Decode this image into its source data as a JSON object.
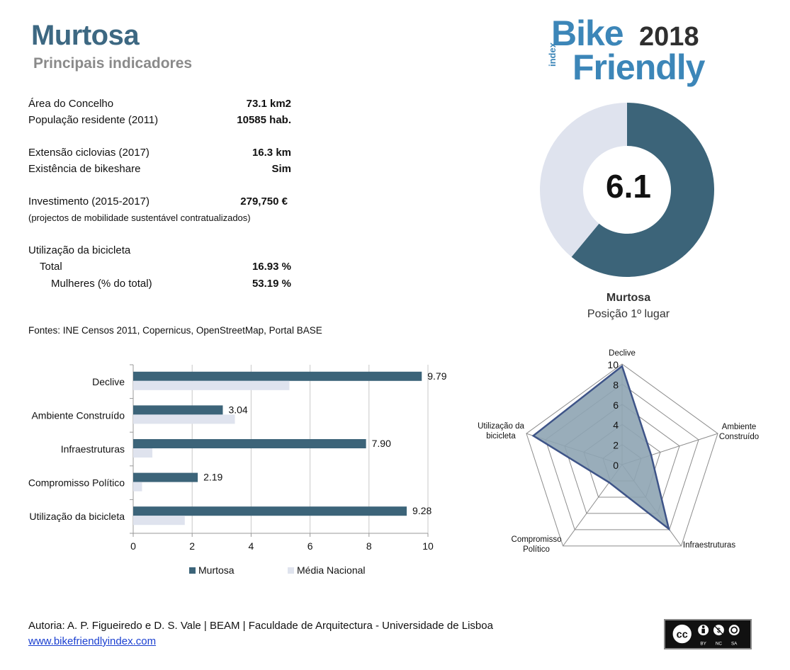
{
  "header": {
    "title": "Murtosa",
    "subtitle": "Principais indicadores"
  },
  "logo": {
    "bike": "Bike",
    "year": "2018",
    "index": "index",
    "friendly": "Friendly"
  },
  "indicators": {
    "area_label": "Área do Concelho",
    "area_value": "73.1 km2",
    "pop_label": "População residente (2011)",
    "pop_value": "10585 hab.",
    "cycle_label": "Extensão ciclovias (2017)",
    "cycle_value": "16.3 km",
    "bikeshare_label": "Existência de bikeshare",
    "bikeshare_value": "Sim",
    "invest_label": "Investimento (2015-2017)",
    "invest_value": "279,750 €",
    "invest_note": "(projectos de mobilidade sustentável contratualizados)",
    "usage_label": "Utilização da bicicleta",
    "total_label": "Total",
    "total_value": "16.93 %",
    "women_label": "Mulheres (% do total)",
    "women_value": "53.19 %"
  },
  "sources": "Fontes: INE Censos 2011, Copernicus, OpenStreetMap,  Portal BASE",
  "footer": {
    "author": "Autoria: A. P. Figueiredo e D. S. Vale | BEAM | Faculdade de Arquitectura - Universidade de Lisboa",
    "website": "www.bikefriendlyindex.com",
    "license_icons": [
      "cc-icon",
      "by-icon",
      "nc-icon",
      "sa-icon"
    ],
    "license_labels": [
      "BY",
      "NC",
      "SA"
    ]
  },
  "chart_data": [
    {
      "type": "pie",
      "variant": "donut",
      "score": "6.1",
      "values": [
        6.1,
        3.9
      ],
      "max": 10,
      "colors": [
        "#3c6479",
        "#dfe3ee"
      ],
      "label": "Murtosa",
      "sublabel": "Posição 1º lugar"
    },
    {
      "type": "bar",
      "orientation": "horizontal",
      "categories": [
        "Declive",
        "Ambiente Construído",
        "Infraestruturas",
        "Compromisso Político",
        "Utilização da bicicleta"
      ],
      "series": [
        {
          "name": "Murtosa",
          "values": [
            9.79,
            3.04,
            7.9,
            2.19,
            9.28
          ],
          "color": "#3c6479"
        },
        {
          "name": "Média Nacional",
          "values": [
            5.3,
            3.45,
            0.65,
            0.3,
            1.75
          ],
          "color": "#dfe3ee"
        }
      ],
      "data_labels": [
        "9.79",
        "3.04",
        "7.90",
        "2.19",
        "9.28"
      ],
      "xlim": [
        0,
        10
      ],
      "xticks": [
        0,
        2,
        4,
        6,
        8,
        10
      ],
      "grid": true,
      "legend": "bottom"
    },
    {
      "type": "radar",
      "axes": [
        "Declive",
        "Ambiente Construído",
        "Infraestruturas",
        "Compromisso Político",
        "Utilização da bicicleta"
      ],
      "axis_labels": [
        "Declive",
        "Ambiente\nConstruído",
        "Infraestruturas",
        "Compromisso\nPolítico",
        "Utilização da\nbicicleta"
      ],
      "values": [
        9.79,
        3.04,
        7.9,
        2.19,
        9.28
      ],
      "rmax": 10,
      "rticks": [
        0,
        2,
        4,
        6,
        8,
        10
      ],
      "fill_color": "#8ea4b3",
      "line_color": "#3e5488"
    }
  ]
}
